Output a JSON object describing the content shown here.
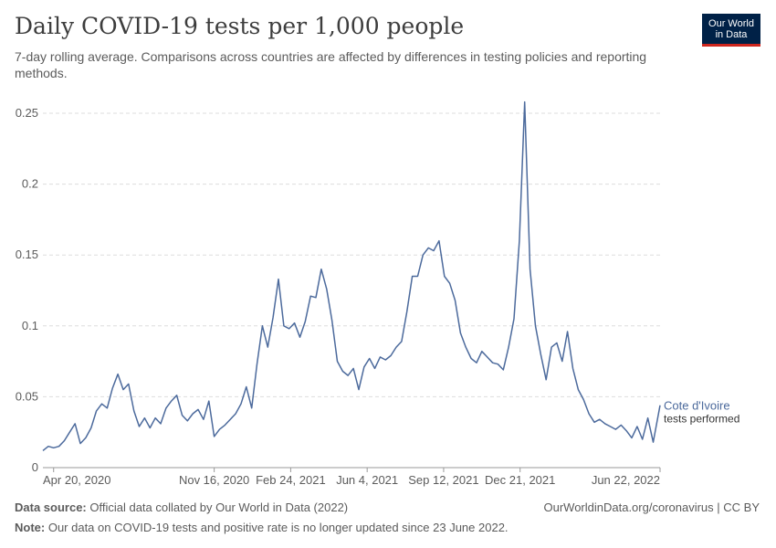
{
  "header": {
    "title": "Daily COVID-19 tests per 1,000 people",
    "subtitle": "7-day rolling average. Comparisons across countries are affected by differences in testing policies and reporting methods."
  },
  "logo": {
    "line1": "Our World",
    "line2": "in Data"
  },
  "footer": {
    "source_label": "Data source:",
    "source_text": " Official data collated by Our World in Data (2022)",
    "link": "OurWorldinData.org/coronavirus | CC BY",
    "note_label": "Note:",
    "note_text": " Our data on COVID-19 tests and positive rate is no longer updated since 23 June 2022."
  },
  "colors": {
    "line": "#4c6a9c",
    "grid": "#dddddd",
    "axis": "#999999",
    "text": "#5b5b5b"
  },
  "chart_data": {
    "type": "line",
    "title": "Daily COVID-19 tests per 1,000 people",
    "ylim": [
      0,
      0.25
    ],
    "xlim": [
      "2020-04-06",
      "2022-06-22"
    ],
    "y_ticks": [
      0,
      0.05,
      0.1,
      0.15,
      0.2,
      0.25
    ],
    "y_tick_labels": [
      "0",
      "0.05",
      "0.1",
      "0.15",
      "0.2",
      "0.25"
    ],
    "x_ticks": [
      "2020-04-20",
      "2020-11-16",
      "2021-02-24",
      "2021-06-04",
      "2021-09-12",
      "2021-12-21",
      "2022-06-22"
    ],
    "x_tick_labels": [
      "Apr 20, 2020",
      "Nov 16, 2020",
      "Feb 24, 2021",
      "Jun 4, 2021",
      "Sep 12, 2021",
      "Dec 21, 2021",
      "Jun 22, 2022"
    ],
    "grid": "horizontal dashed",
    "series": [
      {
        "name": "Cote d'Ivoire",
        "label_line2": "tests performed",
        "points": [
          [
            "2020-04-06",
            0.012
          ],
          [
            "2020-04-13",
            0.015
          ],
          [
            "2020-04-20",
            0.014
          ],
          [
            "2020-04-27",
            0.015
          ],
          [
            "2020-05-04",
            0.019
          ],
          [
            "2020-05-11",
            0.025
          ],
          [
            "2020-05-18",
            0.031
          ],
          [
            "2020-05-25",
            0.017
          ],
          [
            "2020-06-01",
            0.021
          ],
          [
            "2020-06-08",
            0.028
          ],
          [
            "2020-06-15",
            0.04
          ],
          [
            "2020-06-22",
            0.045
          ],
          [
            "2020-06-29",
            0.042
          ],
          [
            "2020-07-06",
            0.056
          ],
          [
            "2020-07-13",
            0.066
          ],
          [
            "2020-07-20",
            0.055
          ],
          [
            "2020-07-27",
            0.059
          ],
          [
            "2020-08-03",
            0.04
          ],
          [
            "2020-08-10",
            0.029
          ],
          [
            "2020-08-17",
            0.035
          ],
          [
            "2020-08-24",
            0.028
          ],
          [
            "2020-08-31",
            0.035
          ],
          [
            "2020-09-07",
            0.031
          ],
          [
            "2020-09-14",
            0.042
          ],
          [
            "2020-09-21",
            0.047
          ],
          [
            "2020-09-28",
            0.051
          ],
          [
            "2020-10-05",
            0.037
          ],
          [
            "2020-10-12",
            0.033
          ],
          [
            "2020-10-19",
            0.038
          ],
          [
            "2020-10-26",
            0.041
          ],
          [
            "2020-11-02",
            0.034
          ],
          [
            "2020-11-09",
            0.047
          ],
          [
            "2020-11-16",
            0.022
          ],
          [
            "2020-11-23",
            0.027
          ],
          [
            "2020-11-30",
            0.03
          ],
          [
            "2020-12-07",
            0.034
          ],
          [
            "2020-12-14",
            0.038
          ],
          [
            "2020-12-21",
            0.045
          ],
          [
            "2020-12-28",
            0.057
          ],
          [
            "2021-01-04",
            0.042
          ],
          [
            "2021-01-11",
            0.073
          ],
          [
            "2021-01-18",
            0.1
          ],
          [
            "2021-01-25",
            0.085
          ],
          [
            "2021-02-01",
            0.106
          ],
          [
            "2021-02-08",
            0.133
          ],
          [
            "2021-02-15",
            0.1
          ],
          [
            "2021-02-22",
            0.098
          ],
          [
            "2021-03-01",
            0.102
          ],
          [
            "2021-03-08",
            0.092
          ],
          [
            "2021-03-15",
            0.103
          ],
          [
            "2021-03-22",
            0.121
          ],
          [
            "2021-03-29",
            0.12
          ],
          [
            "2021-04-05",
            0.14
          ],
          [
            "2021-04-12",
            0.126
          ],
          [
            "2021-04-19",
            0.104
          ],
          [
            "2021-04-26",
            0.075
          ],
          [
            "2021-05-03",
            0.068
          ],
          [
            "2021-05-10",
            0.065
          ],
          [
            "2021-05-17",
            0.07
          ],
          [
            "2021-05-24",
            0.055
          ],
          [
            "2021-05-31",
            0.071
          ],
          [
            "2021-06-07",
            0.077
          ],
          [
            "2021-06-14",
            0.07
          ],
          [
            "2021-06-21",
            0.078
          ],
          [
            "2021-06-28",
            0.076
          ],
          [
            "2021-07-05",
            0.079
          ],
          [
            "2021-07-12",
            0.085
          ],
          [
            "2021-07-19",
            0.089
          ],
          [
            "2021-07-26",
            0.11
          ],
          [
            "2021-08-02",
            0.135
          ],
          [
            "2021-08-09",
            0.135
          ],
          [
            "2021-08-16",
            0.15
          ],
          [
            "2021-08-23",
            0.155
          ],
          [
            "2021-08-30",
            0.153
          ],
          [
            "2021-09-06",
            0.16
          ],
          [
            "2021-09-13",
            0.135
          ],
          [
            "2021-09-20",
            0.13
          ],
          [
            "2021-09-27",
            0.118
          ],
          [
            "2021-10-04",
            0.095
          ],
          [
            "2021-10-11",
            0.085
          ],
          [
            "2021-10-18",
            0.077
          ],
          [
            "2021-10-25",
            0.074
          ],
          [
            "2021-11-01",
            0.082
          ],
          [
            "2021-11-08",
            0.078
          ],
          [
            "2021-11-15",
            0.074
          ],
          [
            "2021-11-22",
            0.073
          ],
          [
            "2021-11-29",
            0.069
          ],
          [
            "2021-12-06",
            0.085
          ],
          [
            "2021-12-13",
            0.105
          ],
          [
            "2021-12-20",
            0.16
          ],
          [
            "2021-12-27",
            0.258
          ],
          [
            "2022-01-03",
            0.14
          ],
          [
            "2022-01-10",
            0.1
          ],
          [
            "2022-01-17",
            0.08
          ],
          [
            "2022-01-24",
            0.062
          ],
          [
            "2022-01-31",
            0.085
          ],
          [
            "2022-02-07",
            0.088
          ],
          [
            "2022-02-14",
            0.075
          ],
          [
            "2022-02-21",
            0.096
          ],
          [
            "2022-02-28",
            0.07
          ],
          [
            "2022-03-07",
            0.055
          ],
          [
            "2022-03-14",
            0.048
          ],
          [
            "2022-03-21",
            0.038
          ],
          [
            "2022-03-28",
            0.032
          ],
          [
            "2022-04-04",
            0.034
          ],
          [
            "2022-04-11",
            0.031
          ],
          [
            "2022-04-18",
            0.029
          ],
          [
            "2022-04-25",
            0.027
          ],
          [
            "2022-05-02",
            0.03
          ],
          [
            "2022-05-09",
            0.026
          ],
          [
            "2022-05-16",
            0.021
          ],
          [
            "2022-05-23",
            0.029
          ],
          [
            "2022-05-30",
            0.02
          ],
          [
            "2022-06-06",
            0.035
          ],
          [
            "2022-06-13",
            0.018
          ],
          [
            "2022-06-22",
            0.044
          ]
        ]
      }
    ]
  }
}
